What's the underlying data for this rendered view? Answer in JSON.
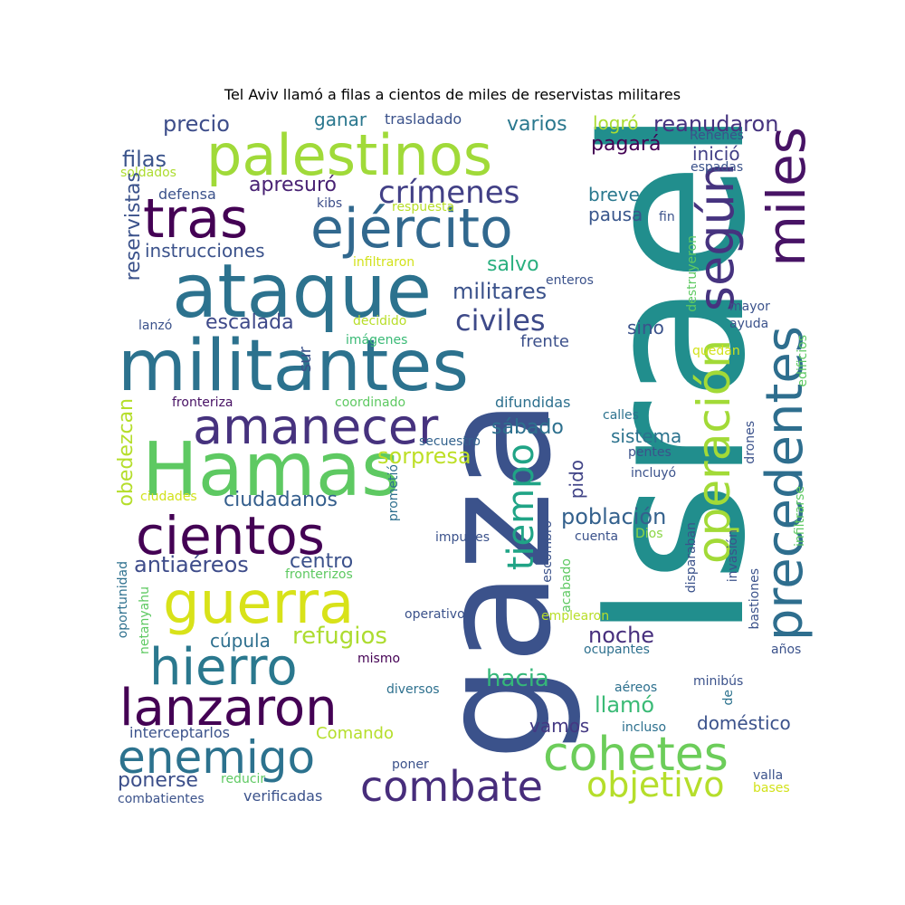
{
  "title": "Tel Aviv llamó a filas a cientos de miles de reservistas militares",
  "words": [
    {
      "text": "Israel",
      "color": "#218e8d"
    },
    {
      "text": "gaza",
      "color": "#3b528b"
    },
    {
      "text": "militantes",
      "color": "#2c728e"
    },
    {
      "text": "ataque",
      "color": "#2c728e"
    },
    {
      "text": "palestinos",
      "color": "#a0da39"
    },
    {
      "text": "Hamas",
      "color": "#5ec962"
    },
    {
      "text": "tras",
      "color": "#440154"
    },
    {
      "text": "ejército",
      "color": "#31688e"
    },
    {
      "text": "amanecer",
      "color": "#46327e"
    },
    {
      "text": "cientos",
      "color": "#440154"
    },
    {
      "text": "guerra",
      "color": "#d8e219"
    },
    {
      "text": "hierro",
      "color": "#2a788e"
    },
    {
      "text": "lanzaron",
      "color": "#440154"
    },
    {
      "text": "enemigo",
      "color": "#2c728e"
    },
    {
      "text": "combate",
      "color": "#472d7b"
    },
    {
      "text": "cohetes",
      "color": "#6ccd5a"
    },
    {
      "text": "objetivo",
      "color": "#b5de2b"
    },
    {
      "text": "precedentes",
      "color": "#2e6e8e"
    },
    {
      "text": "operación",
      "color": "#a2da37"
    },
    {
      "text": "según",
      "color": "#46337f"
    },
    {
      "text": "miles",
      "color": "#471365"
    },
    {
      "text": "tiempo",
      "color": "#20a486"
    },
    {
      "text": "crímenes",
      "color": "#424086"
    },
    {
      "text": "civiles",
      "color": "#3e4a89"
    },
    {
      "text": "militares",
      "color": "#3b528b"
    },
    {
      "text": "escalada",
      "color": "#3e4989"
    },
    {
      "text": "ciudadanos",
      "color": "#355f8d"
    },
    {
      "text": "centro",
      "color": "#3b518b"
    },
    {
      "text": "antiaéreos",
      "color": "#3e4c8a"
    },
    {
      "text": "refugios",
      "color": "#addc30"
    },
    {
      "text": "cúpula",
      "color": "#2e6f8e"
    },
    {
      "text": "ponerse",
      "color": "#3c4f8a"
    },
    {
      "text": "hacia",
      "color": "#35b779"
    },
    {
      "text": "noche",
      "color": "#472f7d"
    },
    {
      "text": "llamó",
      "color": "#3aba76"
    },
    {
      "text": "vamos",
      "color": "#443983"
    },
    {
      "text": "población",
      "color": "#34618d"
    },
    {
      "text": "sistema",
      "color": "#2c738e"
    },
    {
      "text": "pido",
      "color": "#414487"
    },
    {
      "text": "sorpresa",
      "color": "#bddf26"
    },
    {
      "text": "sábado",
      "color": "#2d708e"
    },
    {
      "text": "sino",
      "color": "#3b528b"
    },
    {
      "text": "frente",
      "color": "#3c508b"
    },
    {
      "text": "salvo",
      "color": "#29af7f"
    },
    {
      "text": "pausa",
      "color": "#39568c"
    },
    {
      "text": "breve",
      "color": "#2a788e"
    },
    {
      "text": "pagará",
      "color": "#440154"
    },
    {
      "text": "varios",
      "color": "#2a788e"
    },
    {
      "text": "reanudaron",
      "color": "#46337f"
    },
    {
      "text": "logró",
      "color": "#aadc32"
    },
    {
      "text": "inició",
      "color": "#424086"
    },
    {
      "text": "precio",
      "color": "#3d4d8a"
    },
    {
      "text": "ganar",
      "color": "#2a778e"
    },
    {
      "text": "trasladado",
      "color": "#3b528b"
    },
    {
      "text": "filas",
      "color": "#3a538b"
    },
    {
      "text": "soldados",
      "color": "#addc30"
    },
    {
      "text": "defensa",
      "color": "#3b528b"
    },
    {
      "text": "apresuró",
      "color": "#482173"
    },
    {
      "text": "kibs",
      "color": "#3d4e8a"
    },
    {
      "text": "respuesta",
      "color": "#b8de29"
    },
    {
      "text": "reservistas",
      "color": "#3b528b"
    },
    {
      "text": "instrucciones",
      "color": "#3b528b"
    },
    {
      "text": "infiltraron",
      "color": "#d2e21b"
    },
    {
      "text": "enteros",
      "color": "#3b528b"
    },
    {
      "text": "decidido",
      "color": "#b8de29"
    },
    {
      "text": "lanzó",
      "color": "#3b528b"
    },
    {
      "text": "imágenes",
      "color": "#3aba76"
    },
    {
      "text": "sur",
      "color": "#3b528b"
    },
    {
      "text": "fronteriza",
      "color": "#471164"
    },
    {
      "text": "coordinado",
      "color": "#5ec962"
    },
    {
      "text": "difundidas",
      "color": "#2d708e"
    },
    {
      "text": "calles",
      "color": "#2c728e"
    },
    {
      "text": "secuestró",
      "color": "#33628d"
    },
    {
      "text": "pentes",
      "color": "#3b528b"
    },
    {
      "text": "incluyó",
      "color": "#3b528b"
    },
    {
      "text": "obedezcan",
      "color": "#b5de2b"
    },
    {
      "text": "ciudades",
      "color": "#d2e21b"
    },
    {
      "text": "prometió",
      "color": "#2e6f8e"
    },
    {
      "text": "impunes",
      "color": "#3b528b"
    },
    {
      "text": "cuenta",
      "color": "#3b528b"
    },
    {
      "text": "Dios",
      "color": "#8bd646"
    },
    {
      "text": "escombro",
      "color": "#3b528b"
    },
    {
      "text": "acabado",
      "color": "#5ec962"
    },
    {
      "text": "disparaban",
      "color": "#3b528b"
    },
    {
      "text": "invasión",
      "color": "#3b528b"
    },
    {
      "text": "bastiones",
      "color": "#3b528b"
    },
    {
      "text": "fronterizos",
      "color": "#5ec962"
    },
    {
      "text": "operativo",
      "color": "#3b528b"
    },
    {
      "text": "emplearon",
      "color": "#b8de29"
    },
    {
      "text": "ocupantes",
      "color": "#2d708e"
    },
    {
      "text": "oportunidad",
      "color": "#2d708e"
    },
    {
      "text": "netanyahu",
      "color": "#5ec962"
    },
    {
      "text": "mismo",
      "color": "#440154"
    },
    {
      "text": "diversos",
      "color": "#2d708e"
    },
    {
      "text": "aéreos",
      "color": "#2d708e"
    },
    {
      "text": "minibús",
      "color": "#3b528b"
    },
    {
      "text": "de",
      "color": "#2c728e"
    },
    {
      "text": "doméstico",
      "color": "#3b528b"
    },
    {
      "text": "incluso",
      "color": "#2d708e"
    },
    {
      "text": "interceptarlos",
      "color": "#3b528b"
    },
    {
      "text": "Comando",
      "color": "#b5de2b"
    },
    {
      "text": "poner",
      "color": "#3b528b"
    },
    {
      "text": "reducir",
      "color": "#5ec962"
    },
    {
      "text": "verificadas",
      "color": "#3b528b"
    },
    {
      "text": "combatientes",
      "color": "#3b528b"
    },
    {
      "text": "valla",
      "color": "#3b528b"
    },
    {
      "text": "bases",
      "color": "#d2e21b"
    },
    {
      "text": "años",
      "color": "#3b528b"
    },
    {
      "text": "drones",
      "color": "#3b528b"
    },
    {
      "text": "infiltrarse",
      "color": "#5ec962"
    },
    {
      "text": "edificios",
      "color": "#5ec962"
    },
    {
      "text": "quedan",
      "color": "#d2e21b"
    },
    {
      "text": "ayuda",
      "color": "#3b528b"
    },
    {
      "text": "mayor",
      "color": "#3b528b"
    },
    {
      "text": "destruyeron",
      "color": "#5ec962"
    },
    {
      "text": "fin",
      "color": "#3b528b"
    },
    {
      "text": "espadas",
      "color": "#3b528b"
    },
    {
      "text": "Rehenes",
      "color": "#3b528b"
    }
  ]
}
